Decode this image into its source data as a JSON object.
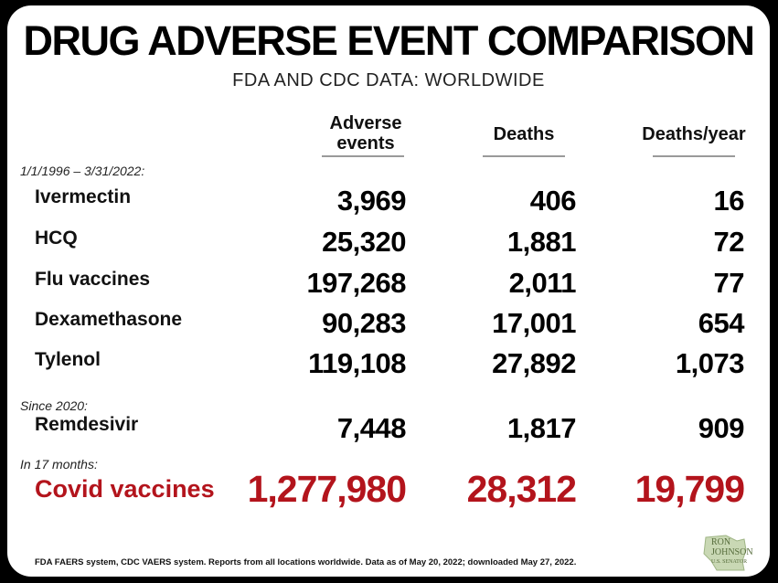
{
  "title": "DRUG ADVERSE EVENT COMPARISON",
  "subtitle": "FDA AND CDC DATA: WORLDWIDE",
  "columns": {
    "adverse_line1": "Adverse",
    "adverse_line2": "events",
    "deaths": "Deaths",
    "deaths_per_year": "Deaths/year"
  },
  "sections": [
    {
      "label": "1/1/1996 – 3/31/2022:",
      "rows": [
        {
          "name": "Ivermectin",
          "adverse": "3,969",
          "deaths": "406",
          "per_year": "16"
        },
        {
          "name": "HCQ",
          "adverse": "25,320",
          "deaths": "1,881",
          "per_year": "72"
        },
        {
          "name": "Flu vaccines",
          "adverse": "197,268",
          "deaths": "2,011",
          "per_year": "77"
        },
        {
          "name": "Dexamethasone",
          "adverse": "90,283",
          "deaths": "17,001",
          "per_year": "654"
        },
        {
          "name": "Tylenol",
          "adverse": "119,108",
          "deaths": "27,892",
          "per_year": "1,073"
        }
      ]
    },
    {
      "label": "Since 2020:",
      "rows": [
        {
          "name": "Remdesivir",
          "adverse": "7,448",
          "deaths": "1,817",
          "per_year": "909"
        }
      ]
    },
    {
      "label": "In 17 months:",
      "rows": [
        {
          "name": "Covid vaccines",
          "adverse": "1,277,980",
          "deaths": "28,312",
          "per_year": "19,799"
        }
      ]
    }
  ],
  "footer": "FDA FAERS system, CDC VAERS system. Reports from all locations worldwide. Data as of May 20, 2022; downloaded May 27, 2022.",
  "logo": {
    "line1": "RON",
    "line2": "JOHNSON",
    "line3": "U.S. SENATOR",
    "shape": "wisconsin-state-icon",
    "color": "#8aa36a"
  },
  "colors": {
    "highlight": "#b3141c",
    "background": "#ffffff",
    "frame": "#000000"
  }
}
